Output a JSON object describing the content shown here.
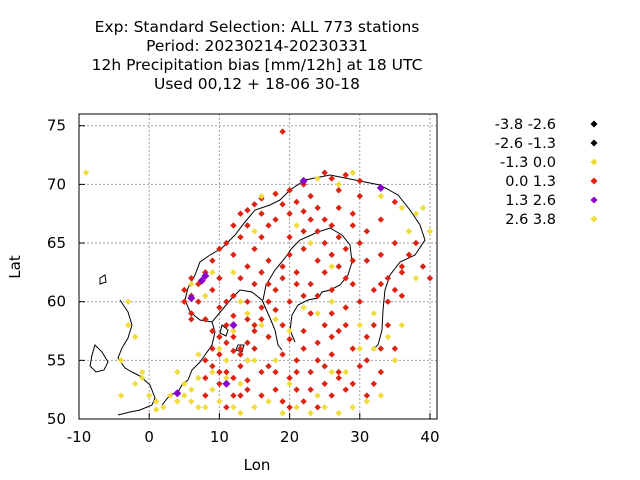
{
  "chart_data": {
    "type": "scatter",
    "title": [
      "Exp: Standard   Selection: ALL    773 stations",
      "Period: 20230214-20230331",
      "12h Precipitation bias [mm/12h] at  18 UTC",
      "Used  00,12  + 18-06 30-18"
    ],
    "xlabel": "Lon",
    "ylabel": "Lat",
    "xlim": [
      -10,
      41
    ],
    "ylim": [
      50,
      76
    ],
    "xticks": [
      "-10",
      "0",
      "10",
      "20",
      "30",
      "40"
    ],
    "yticks": [
      "50",
      "55",
      "60",
      "65",
      "70",
      "75"
    ],
    "grid": true,
    "legend_position": "top-right, outside plot",
    "legend": [
      {
        "label": "-3.8 -2.6",
        "color": "#000000"
      },
      {
        "label": "-2.6 -1.3",
        "color": "#000000"
      },
      {
        "label": "-1.3 0.0",
        "color": "#f0dc3c"
      },
      {
        "label": "0.0 1.3",
        "color": "#dd2211"
      },
      {
        "label": "1.3 2.6",
        "color": "#8800cc"
      },
      {
        "label": "2.6 3.8",
        "color": "#f0dc3c"
      }
    ],
    "series": [
      {
        "legend_index": 3,
        "points": [
          [
            19,
            74.5
          ],
          [
            25,
            71
          ],
          [
            26,
            70.5
          ],
          [
            28,
            70.8
          ],
          [
            30,
            70.3
          ],
          [
            22,
            70
          ],
          [
            20,
            69.5
          ],
          [
            18,
            69.2
          ],
          [
            16,
            68.8
          ],
          [
            15,
            68.3
          ],
          [
            14,
            67.8
          ],
          [
            13,
            67.5
          ],
          [
            12,
            66.5
          ],
          [
            11,
            65
          ],
          [
            9,
            63.5
          ],
          [
            8,
            62.5
          ],
          [
            6,
            62
          ],
          [
            5,
            61
          ],
          [
            7,
            60
          ],
          [
            6,
            59
          ],
          [
            8,
            58.5
          ],
          [
            10,
            59.5
          ],
          [
            12,
            60.5
          ],
          [
            13,
            62
          ],
          [
            14,
            63
          ],
          [
            15,
            64.5
          ],
          [
            16,
            65.5
          ],
          [
            17,
            66.5
          ],
          [
            18,
            67
          ],
          [
            20,
            67.5
          ],
          [
            22,
            67.7
          ],
          [
            24,
            68
          ],
          [
            27,
            68
          ],
          [
            29,
            67.5
          ],
          [
            24,
            66
          ],
          [
            25,
            65
          ],
          [
            26,
            64
          ],
          [
            27,
            63
          ],
          [
            28,
            62
          ],
          [
            29,
            61.5
          ],
          [
            26,
            61
          ],
          [
            24,
            60.5
          ],
          [
            22,
            60.5
          ],
          [
            23,
            61.5
          ],
          [
            21,
            62.5
          ],
          [
            19,
            63
          ],
          [
            17,
            63.5
          ],
          [
            16,
            62.5
          ],
          [
            15,
            61.5
          ],
          [
            14,
            60
          ],
          [
            16,
            59.5
          ],
          [
            17,
            60
          ],
          [
            18,
            59.3
          ],
          [
            16,
            58.5
          ],
          [
            15,
            57.5
          ],
          [
            14,
            56.5
          ],
          [
            13,
            56
          ],
          [
            12,
            57
          ],
          [
            11,
            58
          ],
          [
            12,
            55.8
          ],
          [
            10,
            55.5
          ],
          [
            9,
            56
          ],
          [
            10,
            57
          ],
          [
            8,
            55
          ],
          [
            9,
            54.5
          ],
          [
            11,
            54
          ],
          [
            12,
            53.5
          ],
          [
            10,
            53
          ],
          [
            8,
            52
          ],
          [
            13,
            52
          ],
          [
            14,
            52.5
          ],
          [
            16,
            52
          ],
          [
            18,
            52.5
          ],
          [
            19,
            51.5
          ],
          [
            21,
            52.5
          ],
          [
            22,
            51.5
          ],
          [
            20,
            53.5
          ],
          [
            18,
            54
          ],
          [
            17,
            54.5
          ],
          [
            21,
            55
          ],
          [
            22,
            56
          ],
          [
            24,
            56.5
          ],
          [
            26,
            55.5
          ],
          [
            25,
            54.5
          ],
          [
            23,
            54
          ],
          [
            27,
            53.5
          ],
          [
            28,
            52.5
          ],
          [
            26,
            52
          ],
          [
            24,
            51
          ],
          [
            30,
            54.5
          ],
          [
            31,
            57
          ],
          [
            32,
            58
          ],
          [
            33,
            56
          ],
          [
            32,
            53
          ],
          [
            27,
            57.5
          ],
          [
            25,
            58
          ],
          [
            23,
            59
          ],
          [
            26,
            59
          ],
          [
            28,
            59.5
          ],
          [
            30,
            60
          ],
          [
            32,
            61
          ],
          [
            34,
            62
          ],
          [
            35,
            61
          ],
          [
            36,
            62.5
          ],
          [
            33,
            64
          ],
          [
            35,
            65
          ],
          [
            37,
            64
          ],
          [
            39,
            63
          ],
          [
            40,
            62
          ],
          [
            31,
            66
          ],
          [
            33,
            67
          ],
          [
            35,
            68.5
          ],
          [
            30,
            65
          ],
          [
            28,
            64.5
          ],
          [
            20,
            64
          ],
          [
            20,
            65.5
          ],
          [
            22,
            66
          ],
          [
            12,
            64
          ],
          [
            10,
            62
          ],
          [
            6,
            58.5
          ],
          [
            15,
            56
          ],
          [
            14,
            55
          ],
          [
            13,
            54.5
          ],
          [
            11,
            51
          ],
          [
            12,
            52
          ],
          [
            20,
            51
          ],
          [
            31,
            55
          ],
          [
            34,
            58
          ],
          [
            30,
            69
          ],
          [
            27,
            69.5
          ],
          [
            23,
            69
          ],
          [
            13,
            55.5
          ],
          [
            15,
            58
          ],
          [
            18,
            61
          ],
          [
            21,
            61.5
          ],
          [
            25,
            62.5
          ],
          [
            27,
            65.5
          ],
          [
            29,
            66.5
          ],
          [
            31,
            63.5
          ],
          [
            33,
            61.5
          ],
          [
            36,
            60.5
          ],
          [
            9,
            61
          ],
          [
            7,
            61.5
          ],
          [
            5,
            60
          ],
          [
            6,
            60.5
          ],
          [
            11,
            60
          ],
          [
            10,
            64.5
          ],
          [
            13,
            65.5
          ],
          [
            14,
            66.5
          ],
          [
            16,
            67.5
          ],
          [
            19,
            68.3
          ],
          [
            21,
            68.5
          ],
          [
            23,
            67
          ],
          [
            25,
            67
          ],
          [
            26,
            66.5
          ],
          [
            29,
            63.5
          ],
          [
            24,
            63.5
          ],
          [
            22,
            64.5
          ],
          [
            19,
            62
          ],
          [
            17,
            61.5
          ],
          [
            20,
            60
          ],
          [
            19,
            58
          ],
          [
            17,
            57
          ],
          [
            14,
            58.5
          ],
          [
            12,
            58.8
          ],
          [
            11,
            56.5
          ],
          [
            9,
            57.5
          ],
          [
            10,
            54
          ],
          [
            8,
            53.5
          ],
          [
            14,
            53.3
          ],
          [
            16,
            54
          ],
          [
            19,
            55.5
          ],
          [
            20,
            56.8
          ],
          [
            22,
            57.5
          ],
          [
            21,
            54
          ],
          [
            23,
            52.5
          ],
          [
            25,
            53
          ],
          [
            27,
            54
          ],
          [
            29,
            56
          ],
          [
            26,
            57
          ],
          [
            24,
            55
          ],
          [
            28,
            58
          ],
          [
            29,
            53
          ],
          [
            31,
            52
          ],
          [
            33,
            54
          ],
          [
            35,
            56
          ],
          [
            34,
            60
          ],
          [
            36,
            63
          ],
          [
            38,
            65
          ]
        ]
      },
      {
        "legend_index": 2,
        "points": [
          [
            -9,
            71
          ],
          [
            -4,
            52
          ],
          [
            -2,
            53
          ],
          [
            -1,
            54
          ],
          [
            0,
            52
          ],
          [
            1,
            51.5
          ],
          [
            2,
            51
          ],
          [
            4,
            51.5
          ],
          [
            5,
            52
          ],
          [
            6,
            52.5
          ],
          [
            5,
            53
          ],
          [
            7,
            53.5
          ],
          [
            6,
            51.5
          ],
          [
            8,
            51
          ],
          [
            9,
            52.5
          ],
          [
            10,
            51.5
          ],
          [
            12,
            51
          ],
          [
            13,
            50.5
          ],
          [
            15,
            51
          ],
          [
            17,
            51.5
          ],
          [
            19,
            50.5
          ],
          [
            21,
            51
          ],
          [
            23,
            50.5
          ],
          [
            25,
            51
          ],
          [
            27,
            50.5
          ],
          [
            9,
            54
          ],
          [
            11,
            53.5
          ],
          [
            13,
            53
          ],
          [
            15,
            55
          ],
          [
            7,
            55.5
          ],
          [
            11,
            55
          ],
          [
            12,
            57.5
          ],
          [
            14,
            59
          ],
          [
            22,
            59.5
          ],
          [
            24,
            59
          ],
          [
            26,
            60
          ],
          [
            30,
            58
          ],
          [
            32,
            59
          ],
          [
            34,
            57
          ],
          [
            35,
            55
          ],
          [
            38,
            67.5
          ],
          [
            39,
            68
          ],
          [
            33,
            69
          ],
          [
            27,
            70
          ],
          [
            24,
            70.5
          ],
          [
            29,
            71
          ],
          [
            16,
            69
          ],
          [
            15,
            66
          ],
          [
            12,
            62.5
          ],
          [
            9,
            62.5
          ],
          [
            8,
            60.5
          ],
          [
            6,
            61.5
          ],
          [
            -3,
            58
          ],
          [
            -2,
            57
          ],
          [
            -4,
            55
          ],
          [
            -1,
            53.5
          ],
          [
            3,
            52
          ],
          [
            16,
            58
          ],
          [
            18,
            58.5
          ],
          [
            20,
            57.5
          ],
          [
            28,
            54
          ],
          [
            30,
            56
          ],
          [
            32,
            56
          ],
          [
            33,
            52
          ],
          [
            36,
            58
          ],
          [
            38,
            62
          ],
          [
            40,
            66
          ],
          [
            37,
            66
          ],
          [
            36,
            68
          ],
          [
            21,
            66.5
          ],
          [
            23,
            65
          ],
          [
            26,
            63
          ],
          [
            13,
            60
          ],
          [
            7,
            51
          ],
          [
            24,
            52
          ],
          [
            10,
            56
          ],
          [
            14,
            55
          ],
          [
            20,
            53
          ],
          [
            26,
            54
          ],
          [
            18,
            55
          ],
          [
            29,
            51
          ],
          [
            31,
            51.5
          ],
          [
            4,
            54
          ],
          [
            -3,
            60
          ],
          [
            1,
            50.8
          ]
        ]
      },
      {
        "legend_index": 4,
        "points": [
          [
            8,
            62.2
          ],
          [
            7.5,
            61.8
          ],
          [
            12,
            58
          ],
          [
            33,
            69.7
          ],
          [
            22,
            70.3
          ],
          [
            6,
            60.3
          ],
          [
            11,
            53
          ],
          [
            4,
            52.2
          ]
        ]
      }
    ]
  }
}
